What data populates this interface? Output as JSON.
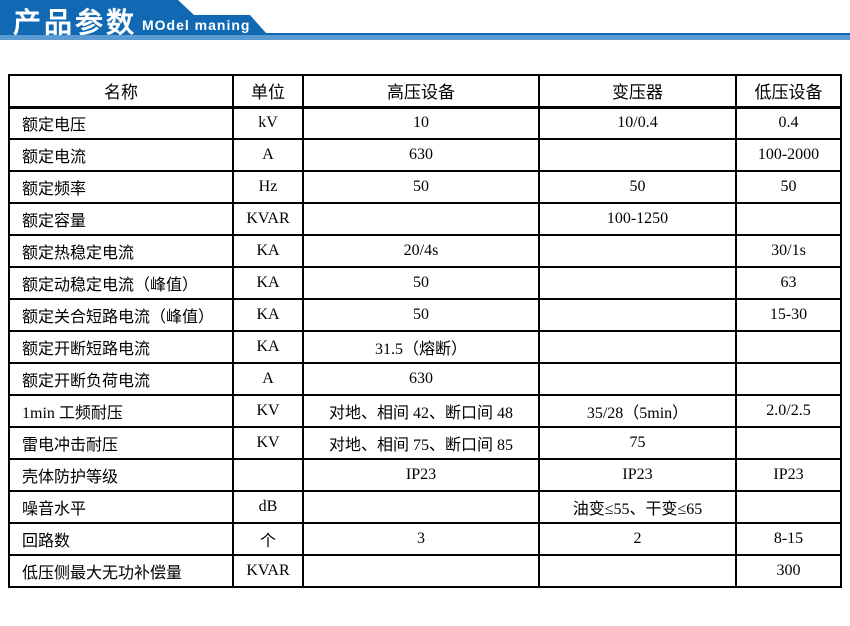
{
  "header": {
    "title": "产品参数",
    "subtitle": "MOdel maning",
    "banner_color": "#1269b3",
    "banner_accent_color": "#5b9bd1",
    "text_color": "#ffffff"
  },
  "table": {
    "columns": [
      "名称",
      "单位",
      "高压设备",
      "变压器",
      "低压设备"
    ],
    "rows": [
      {
        "name": "额定电压",
        "unit": "kV",
        "hv": "10",
        "transformer": "10/0.4",
        "lv": "0.4"
      },
      {
        "name": "额定电流",
        "unit": "A",
        "hv": "630",
        "transformer": "",
        "lv": "100-2000"
      },
      {
        "name": "额定频率",
        "unit": "Hz",
        "hv": "50",
        "transformer": "50",
        "lv": "50"
      },
      {
        "name": "额定容量",
        "unit": "KVAR",
        "hv": "",
        "transformer": "100-1250",
        "lv": ""
      },
      {
        "name": "额定热稳定电流",
        "unit": "KA",
        "hv": "20/4s",
        "transformer": "",
        "lv": "30/1s"
      },
      {
        "name": "额定动稳定电流（峰值）",
        "unit": "KA",
        "hv": "50",
        "transformer": "",
        "lv": "63"
      },
      {
        "name": "额定关合短路电流（峰值）",
        "unit": "KA",
        "hv": "50",
        "transformer": "",
        "lv": "15-30"
      },
      {
        "name": "额定开断短路电流",
        "unit": "KA",
        "hv": "31.5（熔断）",
        "transformer": "",
        "lv": ""
      },
      {
        "name": "额定开断负荷电流",
        "unit": "A",
        "hv": "630",
        "transformer": "",
        "lv": ""
      },
      {
        "name": "1min 工频耐压",
        "unit": "KV",
        "hv": "对地、相间 42、断口间 48",
        "transformer": "35/28（5min）",
        "lv": "2.0/2.5"
      },
      {
        "name": "雷电冲击耐压",
        "unit": "KV",
        "hv": "对地、相间 75、断口间 85",
        "transformer": "75",
        "lv": ""
      },
      {
        "name": "壳体防护等级",
        "unit": "",
        "hv": "IP23",
        "transformer": "IP23",
        "lv": "IP23"
      },
      {
        "name": "噪音水平",
        "unit": "dB",
        "hv": "",
        "transformer": "油变≤55、干变≤65",
        "lv": ""
      },
      {
        "name": "回路数",
        "unit": "个",
        "hv": "3",
        "transformer": "2",
        "lv": "8-15"
      },
      {
        "name": "低压侧最大无功补偿量",
        "unit": "KVAR",
        "hv": "",
        "transformer": "",
        "lv": "300"
      }
    ]
  }
}
